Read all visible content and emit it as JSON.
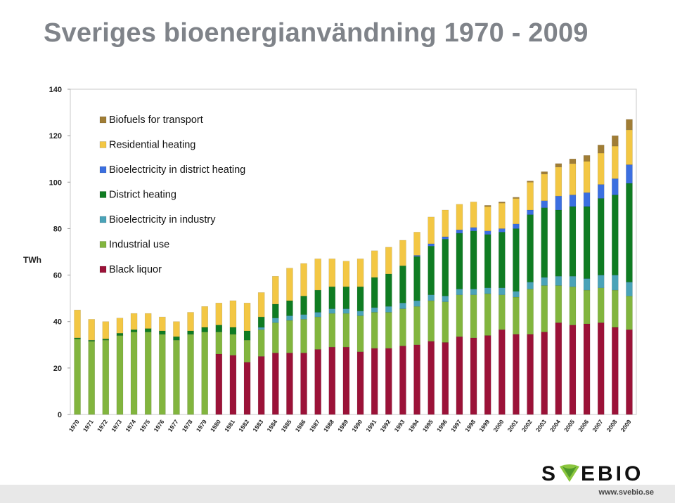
{
  "page": {
    "title": "Sveriges bioenergianvändning 1970 - 2009"
  },
  "footer": {
    "brand": "SVEBIO",
    "url": "www.svebio.se"
  },
  "chart_data": {
    "type": "bar",
    "stacked": true,
    "ylabel": "TWh",
    "ylim": [
      0,
      140
    ],
    "yticks": [
      0,
      20,
      40,
      60,
      80,
      100,
      120,
      140
    ],
    "grid": false,
    "legend_position": "top-left",
    "categories": [
      "1970",
      "1971",
      "1972",
      "1973",
      "1974",
      "1975",
      "1976",
      "1977",
      "1978",
      "1979",
      "1980",
      "1981",
      "1982",
      "1983",
      "1984",
      "1985",
      "1986",
      "1987",
      "1988",
      "1989",
      "1990",
      "1991",
      "1992",
      "1993",
      "1994",
      "1995",
      "1996",
      "1997",
      "1998",
      "1999",
      "2000",
      "2001",
      "2002",
      "2003",
      "2004",
      "2005",
      "2006",
      "2007",
      "2008",
      "2009"
    ],
    "series": [
      {
        "name": "Black liquor",
        "color": "#9b1238",
        "values": [
          0,
          0,
          0,
          0,
          0,
          0,
          0,
          0,
          0,
          0,
          26,
          25.5,
          22.5,
          25,
          26.5,
          26.5,
          26.5,
          28,
          29,
          29,
          27,
          28.5,
          28.5,
          29.5,
          30,
          31.5,
          31,
          33.5,
          33,
          34,
          36.5,
          34.5,
          34.5,
          35.5,
          39.5,
          38.5,
          39,
          39.5,
          37.5,
          36.5
        ]
      },
      {
        "name": "Industrial use",
        "color": "#82b53e",
        "values": [
          32.5,
          31.5,
          32,
          34,
          35.5,
          35.5,
          34.5,
          32,
          34.5,
          35.5,
          9.5,
          9,
          9.5,
          11.5,
          13,
          14,
          14.5,
          14,
          14.5,
          14.5,
          15.5,
          15.5,
          15.5,
          16,
          16.5,
          17.5,
          17.5,
          18,
          18.5,
          18,
          15,
          16,
          19.5,
          20,
          16,
          16.5,
          14.5,
          15,
          16,
          14.5
        ]
      },
      {
        "name": "Bioelectricity in industry",
        "color": "#4aa3b8",
        "values": [
          0,
          0,
          0,
          0,
          0,
          0,
          0,
          0,
          0,
          0,
          0,
          0,
          0,
          1,
          2,
          2,
          2,
          2,
          2,
          2,
          2,
          2,
          2.5,
          2.5,
          2.5,
          2.5,
          2.5,
          2.5,
          2.5,
          2.5,
          3,
          2.5,
          3,
          3.5,
          4,
          4.5,
          5,
          5.5,
          6.5,
          6
        ]
      },
      {
        "name": "District heating",
        "color": "#0f7c22",
        "values": [
          0.5,
          0.5,
          0.5,
          1,
          1,
          1.5,
          1.5,
          1.5,
          1.5,
          2,
          3,
          3,
          4,
          4.5,
          6,
          6.5,
          8,
          9.5,
          9.5,
          9.5,
          10.5,
          13,
          14,
          16,
          19,
          21,
          24.5,
          24,
          25,
          23,
          24,
          27,
          29,
          30,
          28.5,
          30,
          31,
          33,
          34.5,
          42.5
        ]
      },
      {
        "name": "Bioelectricity in district heating",
        "color": "#3b6fe0",
        "values": [
          0,
          0,
          0,
          0,
          0,
          0,
          0,
          0,
          0,
          0,
          0,
          0,
          0,
          0,
          0,
          0,
          0,
          0,
          0,
          0,
          0,
          0,
          0,
          0,
          0.5,
          1,
          1,
          1.5,
          1.5,
          1.5,
          1.5,
          2,
          2,
          3,
          6,
          5,
          6,
          6,
          7,
          8
        ]
      },
      {
        "name": "Residential heating",
        "color": "#f3c744",
        "values": [
          12,
          9,
          7.5,
          6.5,
          7,
          6.5,
          6,
          6.5,
          8,
          9,
          9.5,
          11.5,
          12,
          10.5,
          12,
          14,
          14,
          13.5,
          12,
          11,
          12,
          11.5,
          11.5,
          11,
          10,
          11.5,
          11.5,
          11,
          11,
          10.5,
          11,
          11,
          12,
          11.5,
          12.5,
          13.5,
          13.5,
          13.5,
          14,
          15
        ]
      },
      {
        "name": "Biofuels for transport",
        "color": "#a07d35",
        "values": [
          0,
          0,
          0,
          0,
          0,
          0,
          0,
          0,
          0,
          0,
          0,
          0,
          0,
          0,
          0,
          0,
          0,
          0,
          0,
          0,
          0,
          0,
          0,
          0,
          0,
          0,
          0,
          0,
          0,
          0.5,
          0.5,
          0.5,
          0.5,
          1,
          1.5,
          2,
          2.5,
          3.5,
          4.5,
          4.5
        ]
      }
    ]
  }
}
